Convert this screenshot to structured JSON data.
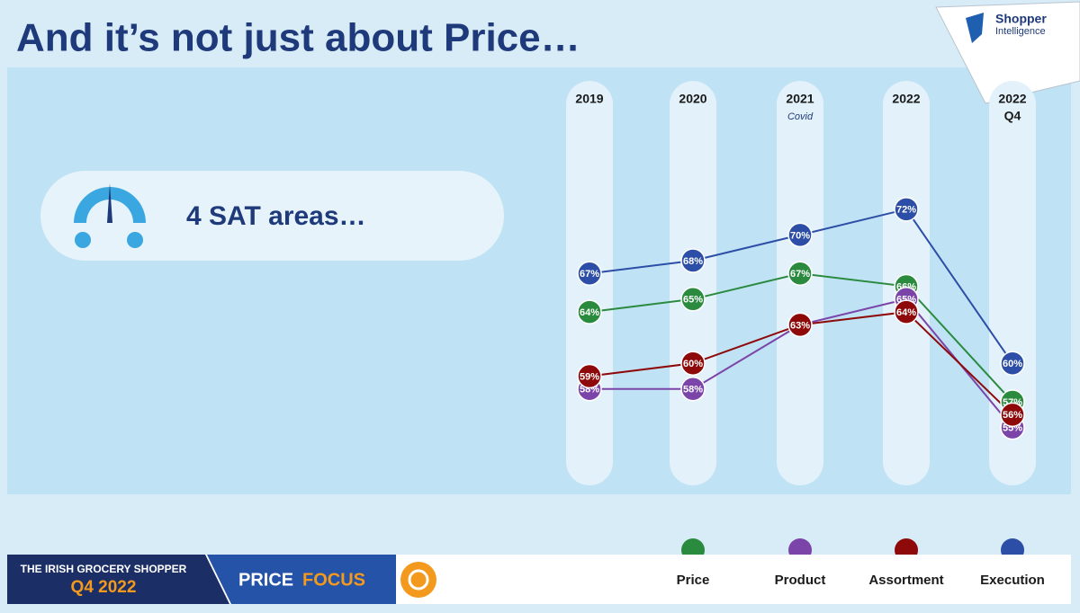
{
  "header": {
    "title": "And it’s not just about Price…",
    "logo_line1": "Shopper",
    "logo_line2": "Intelligence"
  },
  "callout": {
    "text": "4 SAT areas…"
  },
  "chart_data": {
    "type": "line",
    "categories": [
      "2019",
      "2020",
      "2021",
      "2022",
      "2022"
    ],
    "category_notes": [
      null,
      null,
      "Covid",
      null,
      "Q4"
    ],
    "ylim": [
      50,
      75
    ],
    "series": [
      {
        "name": "Price",
        "color": "#2a8a3e",
        "values": [
          64,
          65,
          67,
          66,
          57
        ],
        "value_labels": [
          "64%",
          "65%",
          "67%",
          "66%",
          "57%"
        ]
      },
      {
        "name": "Product",
        "color": "#7b44a8",
        "values": [
          58,
          58,
          63,
          65,
          55
        ],
        "value_labels": [
          "58%",
          "58%",
          "63%",
          "65%",
          "55%"
        ]
      },
      {
        "name": "Assortment",
        "color": "#8e0a0a",
        "values": [
          59,
          60,
          63,
          64,
          56
        ],
        "value_labels": [
          "59%",
          "60%",
          "63%",
          "64%",
          "56%"
        ]
      },
      {
        "name": "Execution",
        "color": "#2c4ea6",
        "values": [
          67,
          68,
          70,
          72,
          60
        ],
        "value_labels": [
          "67%",
          "68%",
          "70%",
          "72%",
          "60%"
        ]
      }
    ]
  },
  "footer": {
    "line1": "THE IRISH GROCERY SHOPPER",
    "line2": "Q4 2022",
    "focus1": "PRICE",
    "focus2": "FOCUS"
  }
}
